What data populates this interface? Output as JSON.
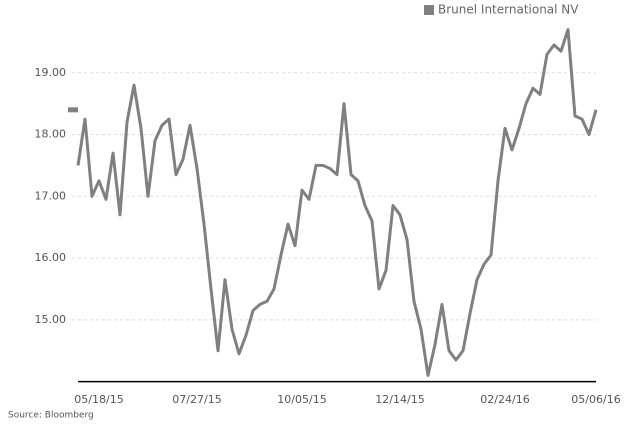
{
  "chart_data": {
    "type": "line",
    "source": "Source: Bloomberg",
    "categories": [
      null,
      null,
      null,
      "05/18/15",
      null,
      null,
      null,
      null,
      null,
      null,
      null,
      null,
      null,
      null,
      null,
      null,
      null,
      "07/27/15",
      null,
      null,
      null,
      null,
      null,
      null,
      null,
      null,
      null,
      null,
      null,
      null,
      null,
      null,
      "10/05/15",
      null,
      null,
      null,
      null,
      null,
      null,
      null,
      null,
      null,
      null,
      null,
      null,
      null,
      "12/14/15",
      null,
      null,
      null,
      null,
      null,
      null,
      null,
      null,
      null,
      null,
      null,
      null,
      null,
      null,
      "02/24/16",
      null,
      null,
      null,
      null,
      null,
      null,
      null,
      null,
      null,
      null,
      null,
      null,
      "05/06/16"
    ],
    "series": [
      {
        "name": "Brunel International NV",
        "color": "#808080",
        "values": [
          17.5,
          18.25,
          17.0,
          17.25,
          16.95,
          17.7,
          16.7,
          18.2,
          18.8,
          18.1,
          17.0,
          17.9,
          18.15,
          18.25,
          17.35,
          17.6,
          18.15,
          17.45,
          16.55,
          15.5,
          14.5,
          15.65,
          14.85,
          14.45,
          14.75,
          15.15,
          15.25,
          15.3,
          15.5,
          16.05,
          16.55,
          16.2,
          17.1,
          16.95,
          17.5,
          17.5,
          17.45,
          17.35,
          18.5,
          17.35,
          17.25,
          16.85,
          16.6,
          15.5,
          15.8,
          16.85,
          16.7,
          16.3,
          15.3,
          14.85,
          14.1,
          14.6,
          15.25,
          14.5,
          14.35,
          14.5,
          15.1,
          15.65,
          15.9,
          16.05,
          17.25,
          18.1,
          17.75,
          18.1,
          18.5,
          18.75,
          18.65,
          19.3,
          19.45,
          19.35,
          19.7,
          18.3,
          18.25,
          18.0,
          18.4
        ]
      }
    ],
    "ylim": [
      14,
      20
    ],
    "yticks": [
      {
        "value": 15,
        "label": "15.00"
      },
      {
        "value": 16,
        "label": "16.00"
      },
      {
        "value": 17,
        "label": "17.00"
      },
      {
        "value": 18,
        "label": "18.00"
      },
      {
        "value": 19,
        "label": "19.00"
      }
    ],
    "grid": true,
    "legend": "top-right"
  }
}
